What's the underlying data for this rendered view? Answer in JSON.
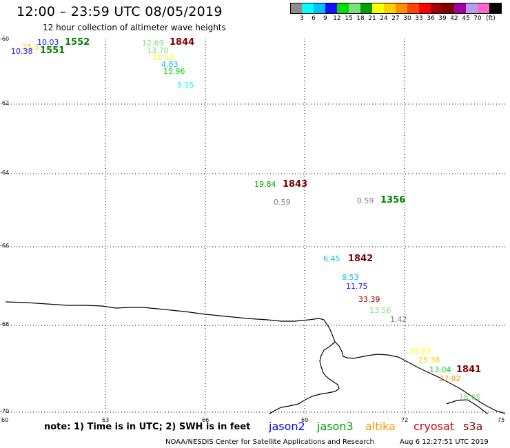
{
  "title": "12:00 – 23:59 UTC 08/05/2019",
  "subtitle": "12 hour collection of altimeter wave heights",
  "legend": {
    "swatches": [
      "#8c8c8c",
      "#00ffff",
      "#00bfff",
      "#1010ff",
      "#00dd00",
      "#7be07b",
      "#00a000",
      "#ffff00",
      "#ffd000",
      "#ff9000",
      "#ff4500",
      "#ff0000",
      "#a00000",
      "#800000",
      "#a000a0",
      "#b89cf0",
      "#ff66cc",
      "#000000"
    ],
    "labels": [
      "3",
      "6",
      "9",
      "12",
      "15",
      "18",
      "21",
      "24",
      "27",
      "30",
      "33",
      "36",
      "39",
      "42",
      "45",
      "70",
      "(ft)"
    ]
  },
  "axes": {
    "lat_labels": [
      "-60",
      "-62",
      "-64",
      "-66",
      "-68",
      "-70"
    ],
    "lon_labels": [
      "60",
      "63",
      "66",
      "69",
      "72",
      "75"
    ]
  },
  "observations": [
    {
      "text": "10.03",
      "color": "#1010ff"
    },
    {
      "text": "25.3",
      "color": "#ffd000"
    },
    {
      "text": "10.38",
      "color": "#1010ff"
    },
    {
      "text": "12.69",
      "color": "#7be07b"
    },
    {
      "text": "13.70",
      "color": "#7be07b"
    },
    {
      "text": "21.52",
      "color": "#ffff00"
    },
    {
      "text": "4.83",
      "color": "#00bfff"
    },
    {
      "text": "15.96",
      "color": "#00dd00"
    },
    {
      "text": "5.15",
      "color": "#00ffff"
    },
    {
      "text": "19.84",
      "color": "#00a000"
    },
    {
      "text": "0.59",
      "color": "#808080"
    },
    {
      "text": "0.59",
      "color": "#808080"
    },
    {
      "text": "6.45",
      "color": "#00bfff"
    },
    {
      "text": "8.53",
      "color": "#00bfff"
    },
    {
      "text": "11.75",
      "color": "#1010ff"
    },
    {
      "text": "33.39",
      "color": "#a00000"
    },
    {
      "text": "13.56",
      "color": "#7be07b"
    },
    {
      "text": "1.42",
      "color": "#808080"
    },
    {
      "text": "23.02",
      "color": "#ffff00"
    },
    {
      "text": "25.38",
      "color": "#ffd000"
    },
    {
      "text": "13.04",
      "color": "#00dd00"
    },
    {
      "text": "27.82",
      "color": "#ff9000"
    },
    {
      "text": "16.05",
      "color": "#7be07b"
    }
  ],
  "time_labels": [
    {
      "text": "1552",
      "color": "#008000"
    },
    {
      "text": "1551",
      "color": "#008000"
    },
    {
      "text": "1844",
      "color": "#800000"
    },
    {
      "text": "1843",
      "color": "#800000"
    },
    {
      "text": "1356",
      "color": "#008000"
    },
    {
      "text": "1842",
      "color": "#800000"
    },
    {
      "text": "1841",
      "color": "#800000"
    }
  ],
  "footer": {
    "note": "note: 1) Time is in UTC; 2) SWH is in feet",
    "satellites": [
      {
        "name": "jason2",
        "color": "#0000ff"
      },
      {
        "name": "jason3",
        "color": "#00a000"
      },
      {
        "name": "altika",
        "color": "#ff9900"
      },
      {
        "name": "cryosat",
        "color": "#dd0000"
      },
      {
        "name": "s3a",
        "color": "#800000"
      }
    ],
    "credit": "NOAA/NESDIS Center for Satellite Applications and Research",
    "timestamp": "Aug  6 12:27:51 UTC 2019"
  }
}
